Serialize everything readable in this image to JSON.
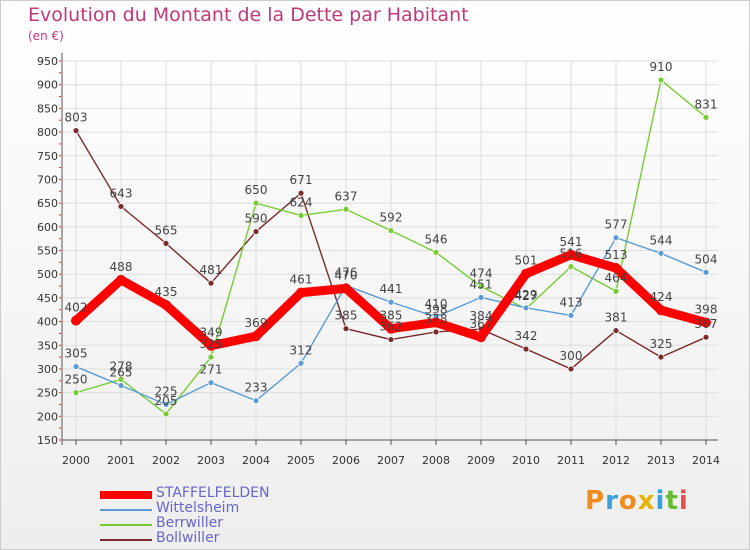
{
  "chart_data": {
    "type": "line",
    "title": "Evolution du Montant de la Dette par Habitant",
    "subtitle": "(en €)",
    "x": [
      "2000",
      "2001",
      "2002",
      "2003",
      "2004",
      "2005",
      "2006",
      "2007",
      "2008",
      "2009",
      "2010",
      "2011",
      "2012",
      "2013",
      "2014"
    ],
    "ylim": [
      150,
      950
    ],
    "yticks": [
      150,
      200,
      250,
      300,
      350,
      400,
      450,
      500,
      550,
      600,
      650,
      700,
      750,
      800,
      850,
      900,
      950
    ],
    "grid": true,
    "legend_position": "bottom-left",
    "series": [
      {
        "name": "STAFFELFELDEN",
        "color": "#ff0000",
        "values": [
          402,
          488,
          435,
          349,
          369,
          461,
          470,
          385,
          398,
          367,
          501,
          541,
          513,
          424,
          398
        ]
      },
      {
        "name": "Wittelsheim",
        "color": "#5b9bd5",
        "values": [
          305,
          265,
          225,
          271,
          233,
          312,
          476,
          441,
          410,
          451,
          429,
          413,
          577,
          544,
          504
        ]
      },
      {
        "name": "Berrwiller",
        "color": "#77cc33",
        "values": [
          250,
          278,
          205,
          325,
          650,
          624,
          637,
          592,
          546,
          474,
          427,
          516,
          464,
          910,
          831
        ]
      },
      {
        "name": "Bollwiller",
        "color": "#7a2a2a",
        "values": [
          803,
          643,
          565,
          481,
          590,
          671,
          385,
          362,
          378,
          384,
          342,
          300,
          381,
          325,
          367
        ]
      }
    ]
  },
  "logo": {
    "letters": [
      "P",
      "r",
      "o",
      "x",
      "i",
      "t",
      "i"
    ],
    "colors": [
      "#f08c1e",
      "#3aa0dc",
      "#f08c1e",
      "#e8b300",
      "#3aa0dc",
      "#66bb33",
      "#e05050"
    ]
  }
}
